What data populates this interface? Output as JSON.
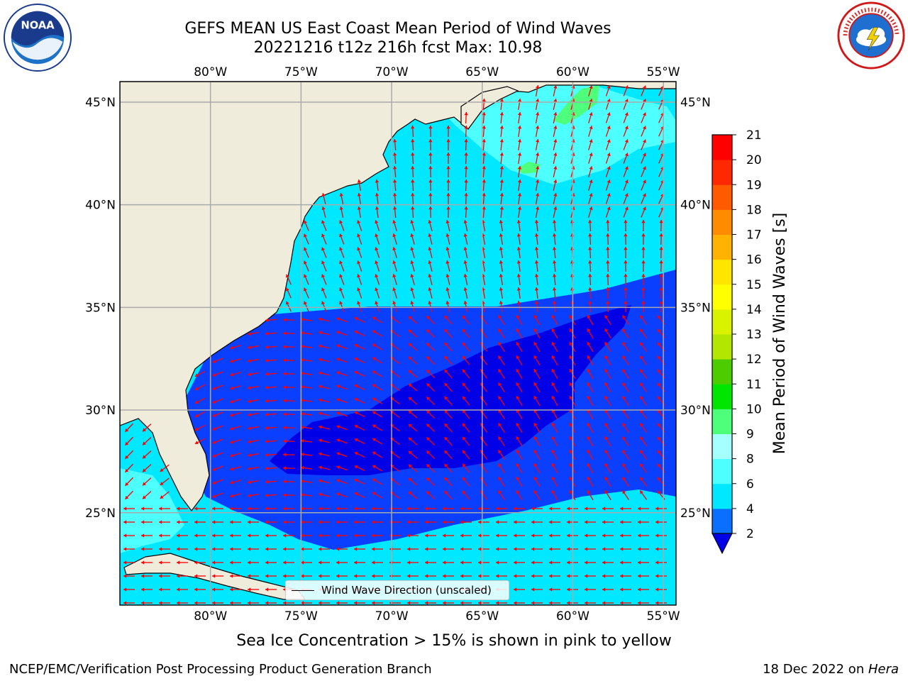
{
  "header": {
    "title_line1": "GEFS MEAN US East Coast Mean Period of Wind Waves",
    "title_line2": "20221216 t12z 216h fcst   Max: 10.98"
  },
  "logos": {
    "left": "noaa-logo",
    "right": "national-weather-service-logo"
  },
  "map": {
    "lon_ticks": [
      "80°W",
      "75°W",
      "70°W",
      "65°W",
      "60°W",
      "55°W"
    ],
    "lat_ticks": [
      "45°N",
      "40°N",
      "35°N",
      "30°N",
      "25°N"
    ],
    "lon_range": [
      -85,
      -54.3
    ],
    "lat_range": [
      20.5,
      46.0
    ],
    "land_color": "#efecdc",
    "ocean_colors": {
      "2-4": "#0a3fff",
      "4-6": "#00e8ff",
      "6-8": "#4dffff",
      "8-9": "#a6ffff",
      "9-10": "#4dff7a",
      "below-2": "#0000e6"
    },
    "arrow_color": "#ff0000",
    "legend_text": "Wind Wave Direction (unscaled)"
  },
  "colorbar": {
    "label": "Mean Period of Wind Waves [s]",
    "ticks": [
      "2",
      "4",
      "6",
      "8",
      "9",
      "10",
      "11",
      "12",
      "13",
      "14",
      "15",
      "16",
      "17",
      "18",
      "19",
      "20",
      "21"
    ],
    "colors": [
      "#0a6fff",
      "#00e8ff",
      "#4dffff",
      "#a6ffff",
      "#4dff7a",
      "#00e600",
      "#4dcc00",
      "#b3e600",
      "#d9f200",
      "#ffff00",
      "#ffe600",
      "#ffb300",
      "#ff8c00",
      "#ff5a00",
      "#ff2800",
      "#ff0000"
    ],
    "under_color": "#0000e6"
  },
  "notes": {
    "sea_ice": "Sea Ice Concentration > 15% is shown in pink to yellow"
  },
  "footer": {
    "left": "NCEP/EMC/Verification Post Processing Product Generation Branch",
    "right_prefix": "18 Dec 2022 on ",
    "right_machine": "Hera"
  }
}
